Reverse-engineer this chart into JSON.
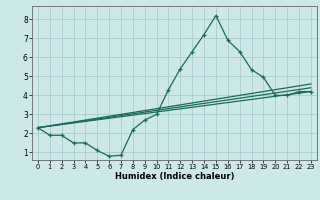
{
  "xlabel": "Humidex (Indice chaleur)",
  "bg_color": "#cce8e8",
  "grid_color": "#aacccc",
  "line_color": "#1a6b5a",
  "xlim": [
    -0.5,
    23.5
  ],
  "ylim": [
    0.6,
    8.7
  ],
  "xticks": [
    0,
    1,
    2,
    3,
    4,
    5,
    6,
    7,
    8,
    9,
    10,
    11,
    12,
    13,
    14,
    15,
    16,
    17,
    18,
    19,
    20,
    21,
    22,
    23
  ],
  "yticks": [
    1,
    2,
    3,
    4,
    5,
    6,
    7,
    8
  ],
  "lines": [
    {
      "x": [
        0,
        1,
        2,
        3,
        4,
        5,
        6,
        7,
        8,
        9,
        10,
        11,
        12,
        13,
        14,
        15,
        16,
        17,
        18,
        19,
        20,
        21,
        22,
        23
      ],
      "y": [
        2.3,
        1.9,
        1.9,
        1.5,
        1.5,
        1.1,
        0.8,
        0.85,
        2.2,
        2.7,
        3.0,
        4.3,
        5.4,
        6.3,
        7.2,
        8.2,
        6.9,
        6.3,
        5.35,
        4.95,
        4.0,
        4.0,
        4.2,
        4.2
      ],
      "has_markers": true
    },
    {
      "x": [
        0,
        23
      ],
      "y": [
        2.3,
        4.2
      ],
      "has_markers": false
    },
    {
      "x": [
        0,
        23
      ],
      "y": [
        2.3,
        4.4
      ],
      "has_markers": false
    },
    {
      "x": [
        0,
        23
      ],
      "y": [
        2.3,
        4.6
      ],
      "has_markers": false
    }
  ]
}
